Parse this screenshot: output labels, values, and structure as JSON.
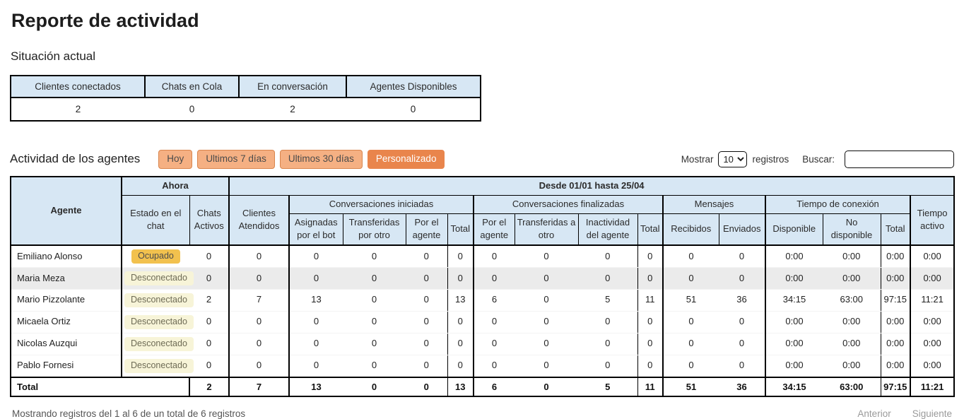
{
  "page": {
    "title": "Reporte de actividad"
  },
  "current_status": {
    "heading": "Situación actual",
    "columns": [
      "Clientes conectados",
      "Chats en Cola",
      "En conversación",
      "Agentes Disponibles"
    ],
    "values": [
      "2",
      "0",
      "2",
      "0"
    ]
  },
  "agents_section": {
    "heading": "Actividad de los agentes",
    "filter_buttons": [
      {
        "label": "Hoy",
        "active": false
      },
      {
        "label": "Ultimos 7 días",
        "active": false
      },
      {
        "label": "Ultimos 30 días",
        "active": false
      },
      {
        "label": "Personalizado",
        "active": true
      }
    ],
    "show_label": "Mostrar",
    "show_value": "10",
    "records_label": "registros",
    "search_label": "Buscar:",
    "search_value": ""
  },
  "colors": {
    "header_bg": "#d7e7f4",
    "button_bg": "#f5b083",
    "button_active_bg": "#e9854c",
    "badge_ocupado_bg": "#f2c14e",
    "badge_desconectado_bg": "#f7f4d8",
    "stripe_bg": "#ebebeb"
  },
  "table": {
    "header": {
      "agente": "Agente",
      "ahora": "Ahora",
      "periodo": "Desde 01/01 hasta 25/04",
      "estado": "Estado en el chat",
      "chats_activos": "Chats Activos",
      "clientes_atendidos": "Clientes Atendidos",
      "conv_iniciadas": "Conversaciones iniciadas",
      "conv_finalizadas": "Conversaciones finalizadas",
      "mensajes": "Mensajes",
      "tiempo_conexion": "Tiempo de conexión",
      "tiempo_activo": "Tiempo activo",
      "sub": {
        "asignadas_bot": "Asignadas por el bot",
        "transferidas_por_otro": "Transferidas por otro",
        "por_el_agente_ini": "Por el agente",
        "total_ini": "Total",
        "por_el_agente_fin": "Por el agente",
        "transferidas_a_otro": "Transferidas a otro",
        "inactividad_agente": "Inactividad del agente",
        "total_fin": "Total",
        "recibidos": "Recibidos",
        "enviados": "Enviados",
        "disponible": "Disponible",
        "no_disponible": "No disponible",
        "total_con": "Total"
      }
    },
    "rows": [
      {
        "name": "Emiliano Alonso",
        "estado": "Ocupado",
        "estado_type": "ocupado",
        "highlighted": false,
        "values": [
          "0",
          "0",
          "0",
          "0",
          "0",
          "0",
          "0",
          "0",
          "0",
          "0",
          "0",
          "0",
          "0:00",
          "0:00",
          "0:00",
          "0:00"
        ]
      },
      {
        "name": "Maria Meza",
        "estado": "Desconectado",
        "estado_type": "desconectado",
        "highlighted": true,
        "values": [
          "0",
          "0",
          "0",
          "0",
          "0",
          "0",
          "0",
          "0",
          "0",
          "0",
          "0",
          "0",
          "0:00",
          "0:00",
          "0:00",
          "0:00"
        ]
      },
      {
        "name": "Mario Pizzolante",
        "estado": "Desconectado",
        "estado_type": "desconectado",
        "highlighted": false,
        "values": [
          "2",
          "7",
          "13",
          "0",
          "0",
          "13",
          "6",
          "0",
          "5",
          "11",
          "51",
          "36",
          "34:15",
          "63:00",
          "97:15",
          "11:21"
        ]
      },
      {
        "name": "Micaela Ortiz",
        "estado": "Desconectado",
        "estado_type": "desconectado",
        "highlighted": false,
        "values": [
          "0",
          "0",
          "0",
          "0",
          "0",
          "0",
          "0",
          "0",
          "0",
          "0",
          "0",
          "0",
          "0:00",
          "0:00",
          "0:00",
          "0:00"
        ]
      },
      {
        "name": "Nicolas Auzqui",
        "estado": "Desconectado",
        "estado_type": "desconectado",
        "highlighted": false,
        "values": [
          "0",
          "0",
          "0",
          "0",
          "0",
          "0",
          "0",
          "0",
          "0",
          "0",
          "0",
          "0",
          "0:00",
          "0:00",
          "0:00",
          "0:00"
        ]
      },
      {
        "name": "Pablo Fornesi",
        "estado": "Desconectado",
        "estado_type": "desconectado",
        "highlighted": false,
        "values": [
          "0",
          "0",
          "0",
          "0",
          "0",
          "0",
          "0",
          "0",
          "0",
          "0",
          "0",
          "0",
          "0:00",
          "0:00",
          "0:00",
          "0:00"
        ]
      }
    ],
    "total": {
      "label": "Total",
      "values": [
        "2",
        "7",
        "13",
        "0",
        "0",
        "13",
        "6",
        "0",
        "5",
        "11",
        "51",
        "36",
        "34:15",
        "63:00",
        "97:15",
        "11:21"
      ]
    }
  },
  "footer": {
    "info": "Mostrando registros del 1 al 6 de un total de 6 registros",
    "prev_label": "Anterior",
    "next_label": "Siguiente"
  }
}
